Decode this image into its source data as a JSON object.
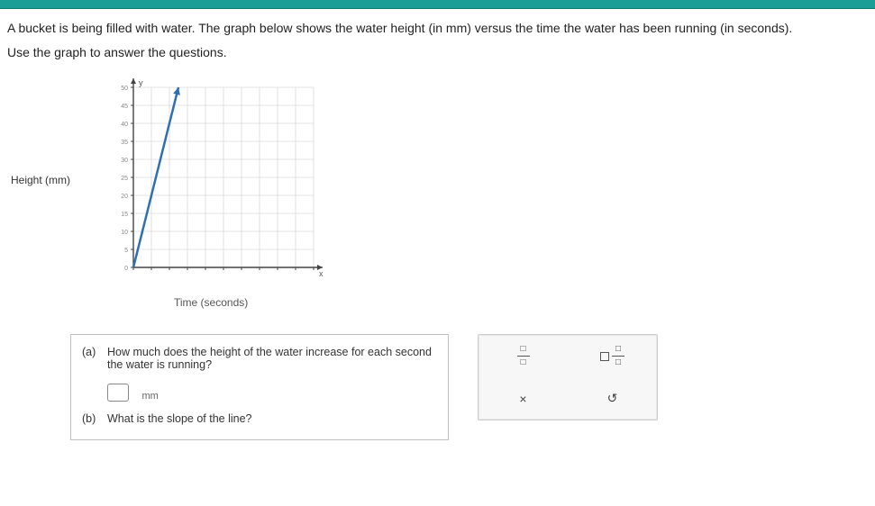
{
  "problem": {
    "line1": "A bucket is being filled with water. The graph below shows the water height (in mm) versus the time the water has been running (in seconds).",
    "line2": "Use the graph to answer the questions."
  },
  "chart": {
    "type": "line",
    "ylabel": "Height (mm)",
    "xlabel": "Time (seconds)",
    "xlim": [
      0,
      10
    ],
    "ylim": [
      0,
      50
    ],
    "xtick_step": 1,
    "ytick_step": 5,
    "ytick_labels": [
      "0",
      "5",
      "10",
      "15",
      "20",
      "25",
      "30",
      "35",
      "40",
      "45",
      "50"
    ],
    "axis_color": "#444444",
    "grid_color": "#cccccc",
    "line_color": "#2f6fb3",
    "line_width": 2.5,
    "background_color": "#ffffff",
    "arrow_heads": true,
    "data_points": [
      [
        0,
        0
      ],
      [
        2.5,
        50
      ]
    ]
  },
  "questions": {
    "a": {
      "letter": "(a)",
      "text": "How much does the height of the water increase for each second the water is running?",
      "unit": "mm"
    },
    "b": {
      "letter": "(b)",
      "text": "What is the slope of the line?"
    }
  },
  "tools": {
    "fraction_label_top": "□",
    "fraction_label_bottom": "□",
    "delete_label": "×",
    "reset_label": "↺"
  }
}
